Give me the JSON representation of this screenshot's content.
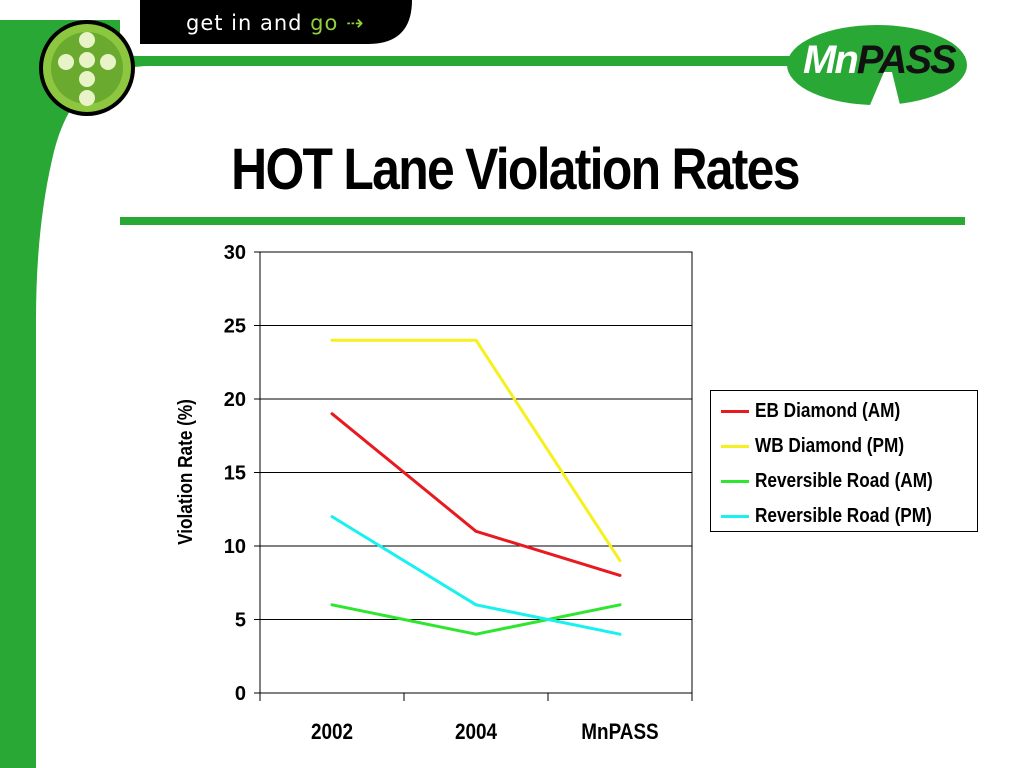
{
  "header": {
    "tagline_prefix": "get in and ",
    "tagline_go": "go",
    "tagline_arrow": "⇢"
  },
  "logo": {
    "mn": "Mn",
    "pass": "PASS"
  },
  "slide": {
    "title": "HOT Lane Violation Rates"
  },
  "colors": {
    "brand_green": "#2aa836",
    "header_black": "#000000",
    "series": [
      "#e8191f",
      "#f5f01e",
      "#2ee62e",
      "#19f0f0"
    ]
  },
  "icons": [
    "plus-dots-logo-icon",
    "arrow-dots-icon",
    "road-icon"
  ],
  "chart_data": {
    "type": "line",
    "categories": [
      "2002",
      "2004",
      "MnPASS"
    ],
    "series": [
      {
        "name": "EB Diamond (AM)",
        "values": [
          19,
          11,
          8
        ]
      },
      {
        "name": "WB Diamond (PM)",
        "values": [
          24,
          24,
          9
        ]
      },
      {
        "name": "Reversible Road (AM)",
        "values": [
          6,
          4,
          6
        ]
      },
      {
        "name": "Reversible Road (PM)",
        "values": [
          12,
          6,
          4
        ]
      }
    ],
    "title": "HOT Lane Violation Rates",
    "xlabel": "",
    "ylabel": "Violation Rate (%)",
    "ylim": [
      0,
      30
    ],
    "yticks": [
      "0",
      "5",
      "10",
      "15",
      "20",
      "25",
      "30"
    ],
    "grid": true,
    "legend": "right"
  }
}
